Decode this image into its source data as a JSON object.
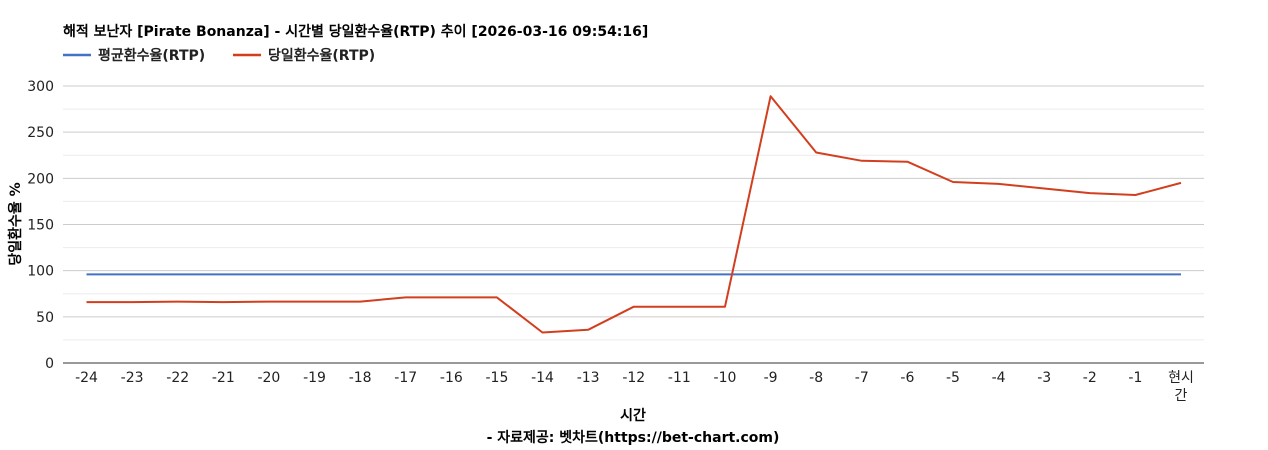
{
  "chart_data": {
    "type": "line",
    "title": "해적 보난자 [Pirate Bonanza] - 시간별 당일환수율(RTP) 추이 [2026-03-16 09:54:16]",
    "xlabel": "시간",
    "ylabel": "당일환수율 %",
    "credit": "- 자료제공: 벳차트(https://bet-chart.com)",
    "categories": [
      "-24",
      "-23",
      "-22",
      "-21",
      "-20",
      "-19",
      "-18",
      "-17",
      "-16",
      "-15",
      "-14",
      "-13",
      "-12",
      "-11",
      "-10",
      "-9",
      "-8",
      "-7",
      "-6",
      "-5",
      "-4",
      "-3",
      "-2",
      "-1",
      "현시간"
    ],
    "yticks": [
      "0",
      "50",
      "100",
      "150",
      "200",
      "250",
      "300"
    ],
    "ylim": [
      0,
      300
    ],
    "grid": true,
    "legend_position": "top-left",
    "series": [
      {
        "name": "평균환수율(RTP)",
        "color": "#4472c4",
        "values": [
          96,
          96,
          96,
          96,
          96,
          96,
          96,
          96,
          96,
          96,
          96,
          96,
          96,
          96,
          96,
          96,
          96,
          96,
          96,
          96,
          96,
          96,
          96,
          96,
          96
        ]
      },
      {
        "name": "당일환수율(RTP)",
        "color": "#d23f1f",
        "values": [
          66,
          66,
          66.5,
          66,
          66.5,
          66.5,
          66.5,
          71,
          71,
          71,
          33,
          36,
          61,
          61,
          61,
          289,
          228,
          219,
          218,
          196,
          194,
          189,
          184,
          182,
          195
        ]
      }
    ]
  }
}
